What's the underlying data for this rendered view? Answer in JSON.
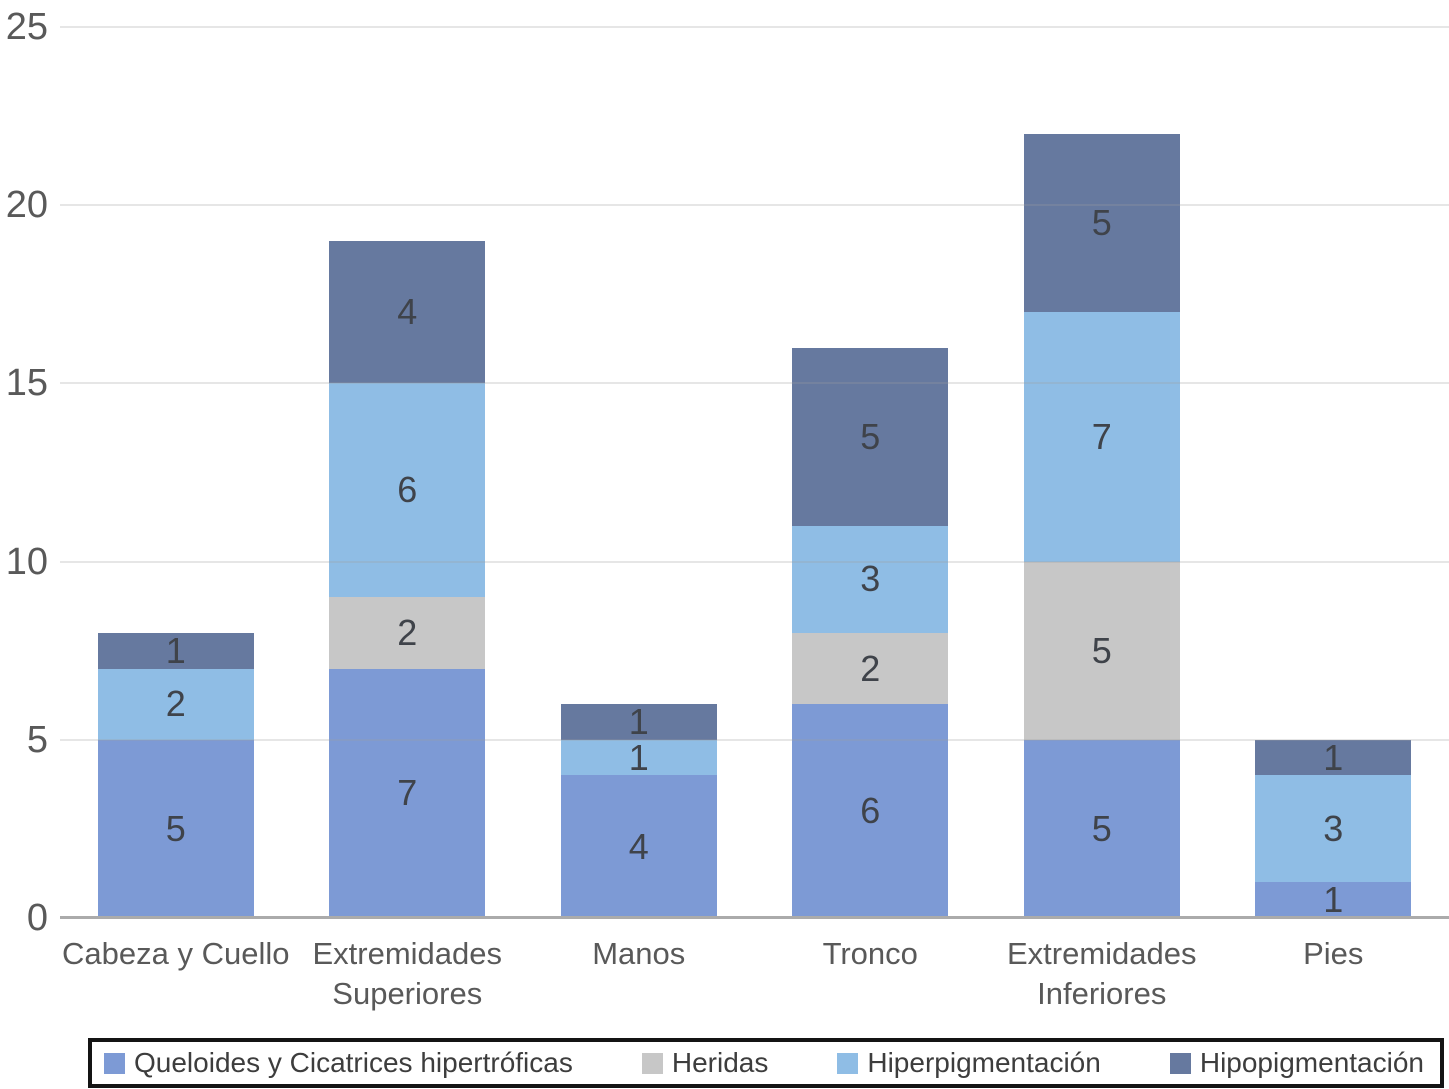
{
  "chart_data": {
    "type": "bar",
    "stacked": true,
    "title": "",
    "categories": [
      "Cabeza y Cuello",
      "Extremidades Superiores",
      "Manos",
      "Tronco",
      "Extremidades Inferiores",
      "Pies"
    ],
    "series": [
      {
        "name": "Queloides y Cicatrices hipertróficas",
        "color": "#7d9ad5",
        "values": [
          5,
          7,
          4,
          6,
          5,
          1
        ]
      },
      {
        "name": "Heridas",
        "color": "#c7c7c7",
        "values": [
          0,
          2,
          0,
          2,
          5,
          0
        ]
      },
      {
        "name": "Hiperpigmentación",
        "color": "#8fbde5",
        "values": [
          2,
          6,
          1,
          3,
          7,
          3
        ]
      },
      {
        "name": "Hipopigmentación",
        "color": "#66799f",
        "values": [
          1,
          4,
          1,
          5,
          5,
          1
        ]
      }
    ],
    "totals": [
      8,
      19,
      6,
      16,
      22,
      5
    ],
    "ylim": [
      0,
      25
    ],
    "ytick_step": 5,
    "ytick_labels": [
      "0",
      "5",
      "10",
      "15",
      "20",
      "25"
    ],
    "grid": true,
    "legend_position": "bottom",
    "value_labels_shown": true,
    "zero_values_hidden": true
  },
  "colors": {
    "background": "#ffffff",
    "gridline": "#e8e8e8",
    "baseline": "#ababab",
    "axis_text": "#595959",
    "value_text": "#3f434a",
    "legend_text": "#3d3d3d",
    "legend_border": "#141414"
  }
}
